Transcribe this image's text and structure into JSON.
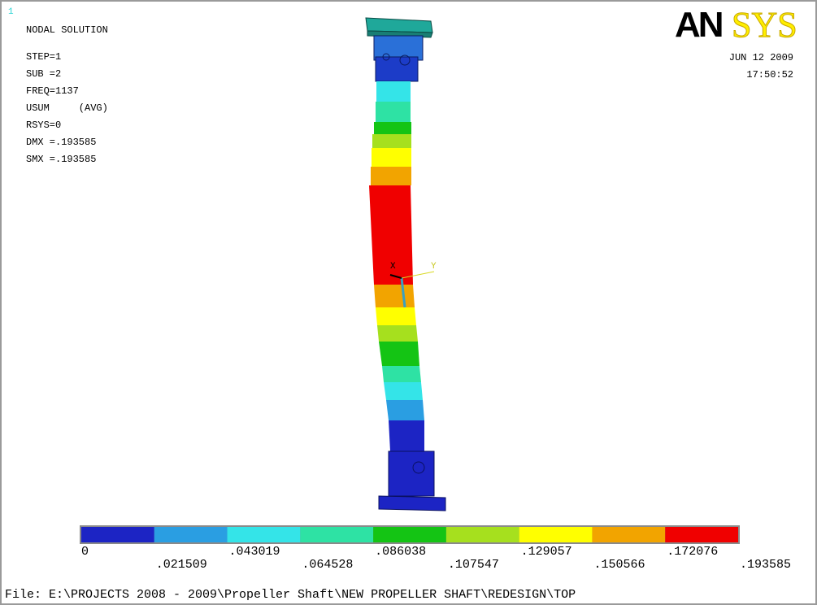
{
  "window_number": "1",
  "header": {
    "title": "NODAL SOLUTION",
    "lines": [
      "STEP=1",
      "SUB =2",
      "FREQ=1137",
      "USUM     (AVG)",
      "RSYS=0",
      "DMX =.193585",
      "SMX =.193585"
    ]
  },
  "logo": {
    "bold": "AN",
    "outline": "SYS"
  },
  "date": "JUN 12 2009",
  "time": "17:50:52",
  "axes": {
    "x": "X",
    "y": "Y"
  },
  "legend": {
    "colors": [
      "#1c24c4",
      "#2a9ee2",
      "#34e4e8",
      "#2ee2a4",
      "#14c414",
      "#a6e01e",
      "#ffff00",
      "#f2a400",
      "#f00000"
    ],
    "labels": [
      "0",
      ".021509",
      ".043019",
      ".064528",
      ".086038",
      ".107547",
      ".129057",
      ".150566",
      ".172076",
      ".193585"
    ]
  },
  "file": "File: E:\\PROJECTS 2008 - 2009\\Propeller Shaft\\NEW PROPELLER SHAFT\\REDESIGN\\TOP"
}
